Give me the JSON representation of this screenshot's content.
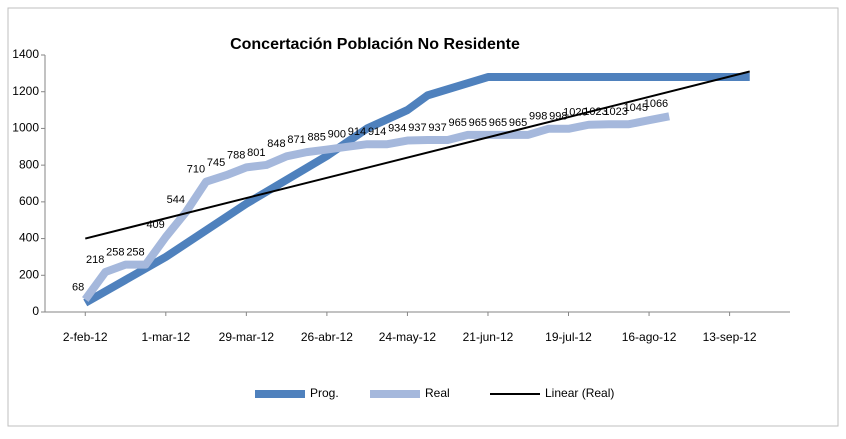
{
  "chart_data": {
    "type": "line",
    "title": "Concertación Población No Residente",
    "ylim": [
      0,
      1400
    ],
    "yticks": [
      0,
      200,
      400,
      600,
      800,
      1000,
      1200,
      1400
    ],
    "xlim": [
      "2012-01-19",
      "2012-10-04"
    ],
    "xticks": [
      {
        "value": "2012-02-02",
        "label": "2-feb-12"
      },
      {
        "value": "2012-03-01",
        "label": "1-mar-12"
      },
      {
        "value": "2012-03-29",
        "label": "29-mar-12"
      },
      {
        "value": "2012-04-26",
        "label": "26-abr-12"
      },
      {
        "value": "2012-05-24",
        "label": "24-may-12"
      },
      {
        "value": "2012-06-21",
        "label": "21-jun-12"
      },
      {
        "value": "2012-07-19",
        "label": "19-jul-12"
      },
      {
        "value": "2012-08-16",
        "label": "16-ago-12"
      },
      {
        "value": "2012-09-13",
        "label": "13-sep-12"
      }
    ],
    "legend": "bottom",
    "series": [
      {
        "name": "Prog.",
        "color": "#4f81bd",
        "width": 8,
        "x": [
          "2012-02-02",
          "2012-03-01",
          "2012-03-29",
          "2012-04-26",
          "2012-05-10",
          "2012-05-24",
          "2012-05-31",
          "2012-06-21",
          "2012-09-20"
        ],
        "values": [
          50,
          300,
          590,
          850,
          1000,
          1100,
          1180,
          1280,
          1280
        ]
      },
      {
        "name": "Real",
        "color": "#a5b8dc",
        "width": 8,
        "labels": true,
        "x": [
          "2012-02-02",
          "2012-02-09",
          "2012-02-16",
          "2012-02-23",
          "2012-03-01",
          "2012-03-08",
          "2012-03-15",
          "2012-03-22",
          "2012-03-29",
          "2012-04-05",
          "2012-04-12",
          "2012-04-19",
          "2012-04-26",
          "2012-05-03",
          "2012-05-10",
          "2012-05-17",
          "2012-05-24",
          "2012-05-31",
          "2012-06-07",
          "2012-06-14",
          "2012-06-21",
          "2012-06-28",
          "2012-07-05",
          "2012-07-12",
          "2012-07-19",
          "2012-07-26",
          "2012-08-02",
          "2012-08-09",
          "2012-08-16",
          "2012-08-23"
        ],
        "values": [
          68,
          218,
          258,
          258,
          409,
          544,
          710,
          745,
          788,
          801,
          848,
          871,
          885,
          900,
          914,
          914,
          934,
          937,
          937,
          965,
          965,
          965,
          965,
          998,
          998,
          1020,
          1023,
          1023,
          1045,
          1066
        ]
      },
      {
        "name": "Linear (Real)",
        "color": "#000000",
        "width": 2,
        "x": [
          "2012-02-02",
          "2012-09-20"
        ],
        "values": [
          400,
          1310
        ]
      }
    ]
  }
}
